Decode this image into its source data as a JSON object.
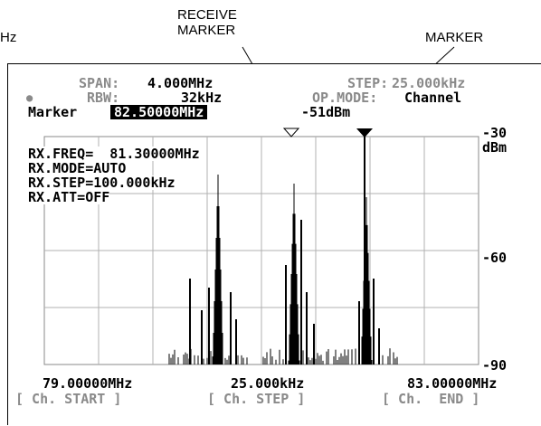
{
  "callouts": {
    "left_fragment": "Hz",
    "receive_marker": "RECEIVE\nMARKER",
    "marker": "MARKER"
  },
  "header": {
    "span_label": "SPAN:",
    "span_value": "4.000MHz",
    "step_label": "STEP:",
    "step_value": "25.000kHz",
    "rbw_label": "RBW:",
    "rbw_value": "32kHz",
    "opmode_label": "OP.MODE:",
    "opmode_value": "Channel",
    "marker_label": "Marker",
    "marker_freq": "82.50000MHz",
    "marker_level": "-51dBm",
    "bullet": "●"
  },
  "rx_info": [
    "RX.FREQ=  81.30000MHz",
    "RX.MODE=AUTO",
    "RX.STEP=100.000kHz",
    "RX.ATT=OFF"
  ],
  "scale": {
    "top": "-30",
    "unit": "dBm",
    "mid": "-60",
    "bottom": "-90"
  },
  "footer": {
    "start_freq": "79.00000MHz",
    "step": "25.000kHz",
    "end_freq": "83.00000MHz",
    "softkey_start": "[ Ch. START ]",
    "softkey_step": "[ Ch. STEP ]",
    "softkey_end": "[ Ch.  END ]"
  },
  "colors": {
    "trace": "#000000",
    "grid": "#b0b0b0",
    "label_gray": "#8a8a8a"
  }
}
